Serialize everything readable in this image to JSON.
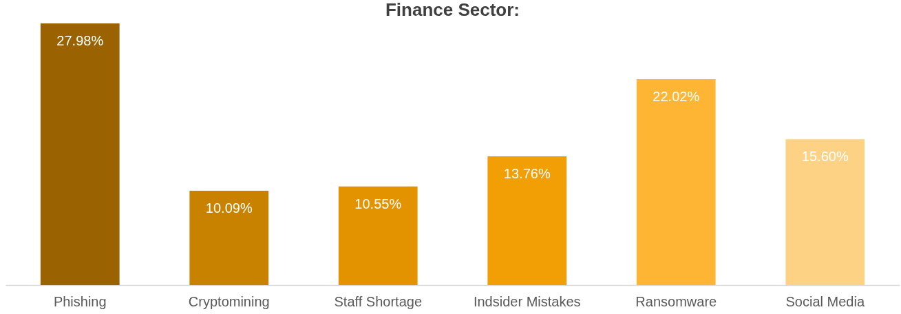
{
  "chart_data": {
    "type": "bar",
    "title": "Finance Sector:",
    "categories": [
      "Phishing",
      "Cryptomining",
      "Staff Shortage",
      "Indsider Mistakes",
      "Ransomware",
      "Social Media"
    ],
    "values": [
      27.98,
      10.09,
      10.55,
      13.76,
      22.02,
      15.6
    ],
    "colors": [
      "#9a6200",
      "#c98200",
      "#e39200",
      "#f29f05",
      "#ffb534",
      "#fdd285"
    ],
    "value_labels": [
      "27.98%",
      "10.09%",
      "10.55%",
      "13.76%",
      "22.02%",
      "15.60%"
    ],
    "grid": false
  }
}
